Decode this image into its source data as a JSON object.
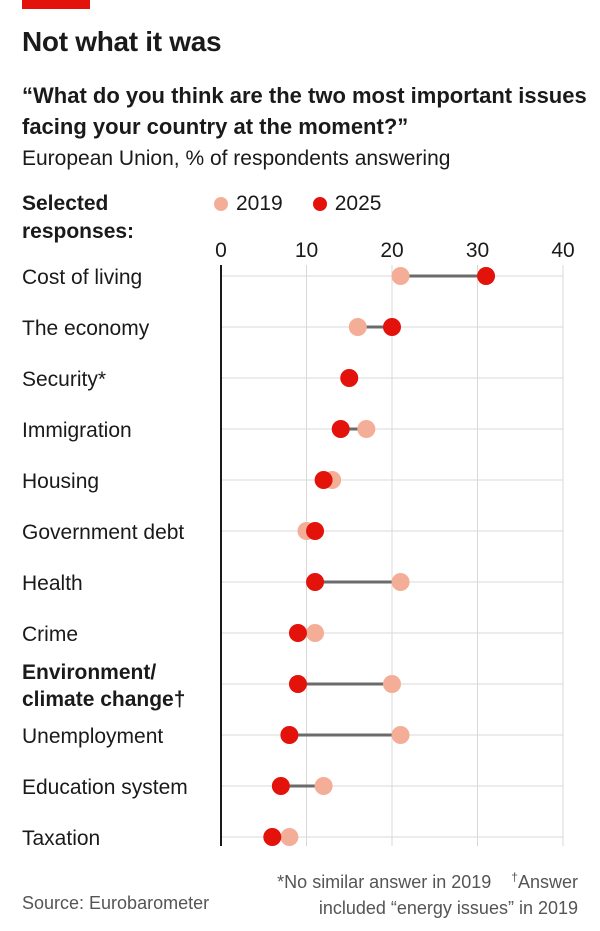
{
  "title": "Not what it was",
  "subtitle": "“What do you think are the two most important issues facing your country at the moment?”",
  "subsubtitle": "European Union, % of respondents answering",
  "selected_label": "Selected responses:",
  "source": "Source: Eurobarometer",
  "footnote_line1": "*No similar answer in 2019",
  "footnote_dagger": "†",
  "footnote_answer": "Answer",
  "footnote_line2": "included “energy issues” in 2019",
  "colors": {
    "accent": "#e3120b",
    "y2019": "#f4ae98",
    "y2025": "#e3120b",
    "connector": "#6b6b6b"
  },
  "chart_data": {
    "type": "dot-plot",
    "xlim": [
      0,
      40
    ],
    "ticks": [
      "0",
      "10",
      "20",
      "30",
      "40"
    ],
    "series": [
      {
        "name": "2019",
        "color": "#f4ae98"
      },
      {
        "name": "2025",
        "color": "#e3120b"
      }
    ],
    "categories": [
      {
        "label": "Cost of living",
        "bold": false,
        "v2019": 21,
        "v2025": 31
      },
      {
        "label": "The economy",
        "bold": false,
        "v2019": 16,
        "v2025": 20
      },
      {
        "label": "Security*",
        "bold": false,
        "v2019": null,
        "v2025": 15
      },
      {
        "label": "Immigration",
        "bold": false,
        "v2019": 17,
        "v2025": 14
      },
      {
        "label": "Housing",
        "bold": false,
        "v2019": 13,
        "v2025": 12
      },
      {
        "label": "Government debt",
        "bold": false,
        "v2019": 10,
        "v2025": 11
      },
      {
        "label": "Health",
        "bold": false,
        "v2019": 21,
        "v2025": 11
      },
      {
        "label": "Crime",
        "bold": false,
        "v2019": 11,
        "v2025": 9
      },
      {
        "label": "Environment/",
        "label2": "climate change†",
        "bold": true,
        "v2019": 20,
        "v2025": 9
      },
      {
        "label": "Unemployment",
        "bold": false,
        "v2019": 21,
        "v2025": 8
      },
      {
        "label": "Education system",
        "bold": false,
        "v2019": 12,
        "v2025": 7
      },
      {
        "label": "Taxation",
        "bold": false,
        "v2019": 8,
        "v2025": 6
      }
    ]
  }
}
